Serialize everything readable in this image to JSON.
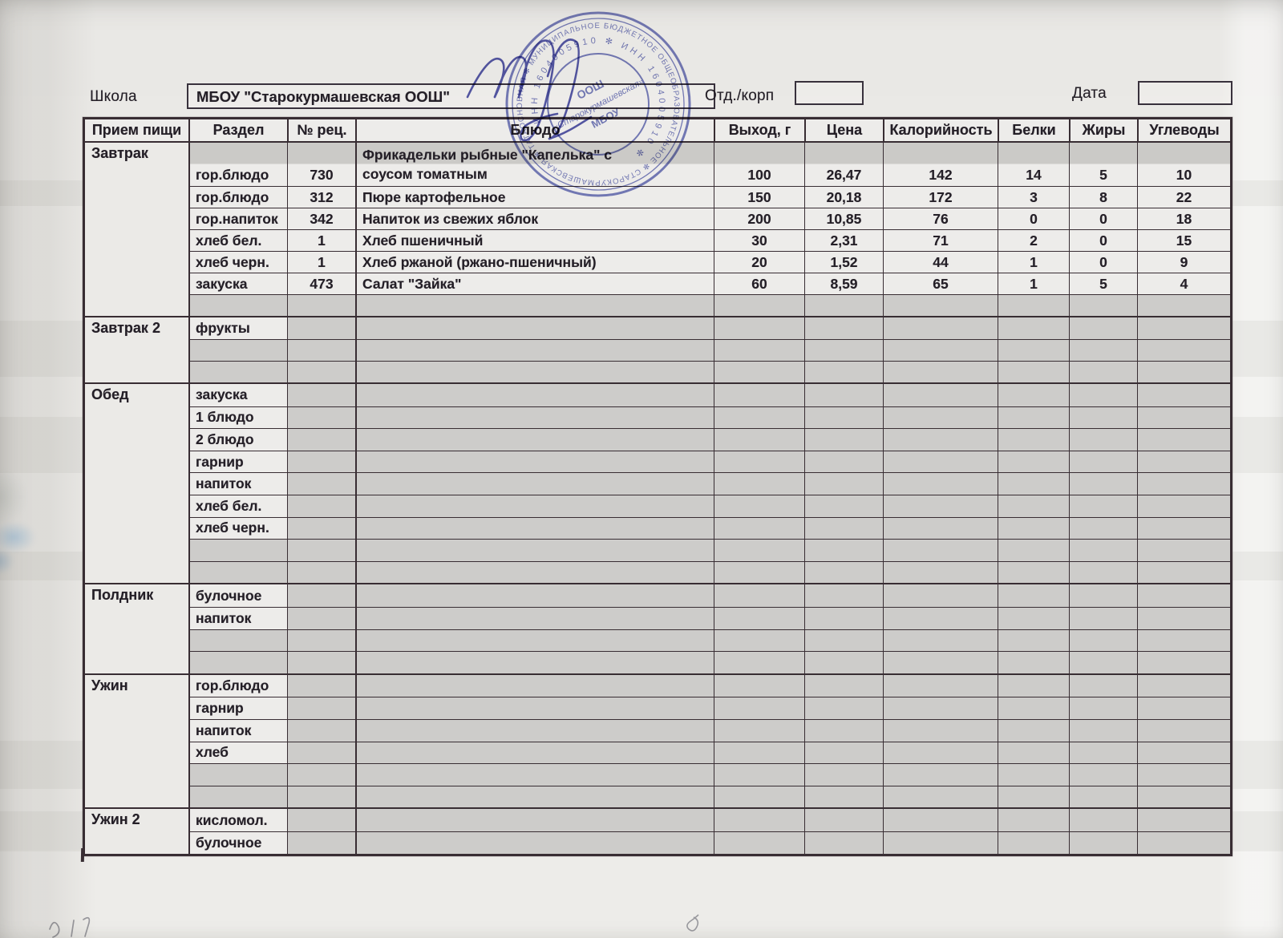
{
  "form": {
    "school_label": "Школа",
    "school_value": "МБОУ \"Старокурмашевская ООШ\"",
    "dept_label": "Отд./корп",
    "dept_value": "",
    "date_label": "Дата",
    "date_value": ""
  },
  "stamp": {
    "ring_outer": "ОСНОВНАЯ ✻ МУНИЦИПАЛЬНОЕ БЮДЖЕТНОЕ ОБЩЕОБРАЗОВАТЕЛЬНОЕ ✻ СТАРОКУРМАШЕВСКАЯ ✻ ТАТАРСТАН",
    "ring_inner": "ИНН 1604005910 ✻ ИНН 1604005910 ✻",
    "center_line1": "ООШ",
    "center_line2": "«Старокурмашевская»",
    "center_line3": "МБОУ",
    "color": "#5d65b5"
  },
  "colors": {
    "grid_line": "#382d33",
    "shaded_cell": "#cdccca",
    "paper": "#eae9e6",
    "stamp_blue": "#5d65b5"
  },
  "table": {
    "headers": [
      "Прием пищи",
      "Раздел",
      "№ рец.",
      "Блюдо",
      "Выход, г",
      "Цена",
      "Калорийность",
      "Белки",
      "Жиры",
      "Углеводы"
    ],
    "sections": [
      {
        "meal": "Завтрак",
        "rows": [
          {
            "razdel": "гор.блюдо",
            "rec": "730",
            "dish": "Фрикадельки рыбные \"Капелька\" с соусом томатным",
            "out": "100",
            "price": "26,47",
            "cal": "142",
            "protein": "14",
            "fat": "5",
            "carbs": "10"
          },
          {
            "razdel": "гор.блюдо",
            "rec": "312",
            "dish": "Пюре картофельное",
            "out": "150",
            "price": "20,18",
            "cal": "172",
            "protein": "3",
            "fat": "8",
            "carbs": "22"
          },
          {
            "razdel": "гор.напиток",
            "rec": "342",
            "dish": "Напиток из свежих яблок",
            "out": "200",
            "price": "10,85",
            "cal": "76",
            "protein": "0",
            "fat": "0",
            "carbs": "18"
          },
          {
            "razdel": "хлеб бел.",
            "rec": "1",
            "dish": "Хлеб пшеничный",
            "out": "30",
            "price": "2,31",
            "cal": "71",
            "protein": "2",
            "fat": "0",
            "carbs": "15"
          },
          {
            "razdel": "хлеб черн.",
            "rec": "1",
            "dish": "Хлеб ржаной (ржано-пшеничный)",
            "out": "20",
            "price": "1,52",
            "cal": "44",
            "protein": "1",
            "fat": "0",
            "carbs": "9"
          },
          {
            "razdel": "закуска",
            "rec": "473",
            "dish": "Салат \"Зайка\"",
            "out": "60",
            "price": "8,59",
            "cal": "65",
            "protein": "1",
            "fat": "5",
            "carbs": "4"
          },
          {}
        ]
      },
      {
        "meal": "Завтрак 2",
        "rows": [
          {
            "razdel": "фрукты"
          },
          {},
          {}
        ]
      },
      {
        "meal": "Обед",
        "rows": [
          {
            "razdel": "закуска"
          },
          {
            "razdel": "1 блюдо"
          },
          {
            "razdel": "2 блюдо"
          },
          {
            "razdel": "гарнир"
          },
          {
            "razdel": "напиток"
          },
          {
            "razdel": "хлеб бел."
          },
          {
            "razdel": "хлеб черн."
          },
          {},
          {}
        ]
      },
      {
        "meal": "Полдник",
        "rows": [
          {
            "razdel": "булочное"
          },
          {
            "razdel": "напиток"
          },
          {},
          {}
        ]
      },
      {
        "meal": "Ужин",
        "rows": [
          {
            "razdel": "гор.блюдо"
          },
          {
            "razdel": "гарнир"
          },
          {
            "razdel": "напиток"
          },
          {
            "razdel": "хлеб"
          },
          {},
          {}
        ]
      },
      {
        "meal": "Ужин 2",
        "rows": [
          {
            "razdel": "кисломол."
          },
          {
            "razdel": "булочное"
          }
        ]
      }
    ]
  }
}
